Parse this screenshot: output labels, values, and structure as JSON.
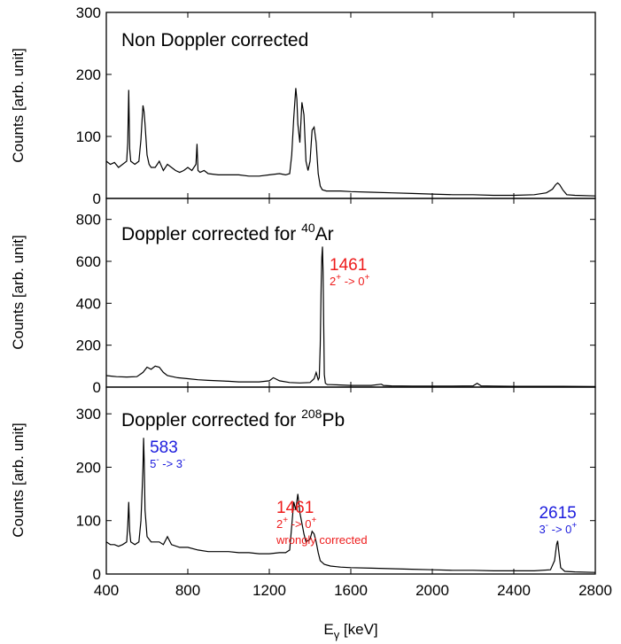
{
  "chart_data": {
    "type": "line",
    "xlabel": "E",
    "xlabel_sub": "γ",
    "xlabel_unit": " [keV]",
    "xlim": [
      400,
      2800
    ],
    "x_ticks": [
      400,
      800,
      1200,
      1600,
      2000,
      2400,
      2800
    ],
    "colors": {
      "red": "#ee1c1c",
      "blue": "#1c1cdd",
      "line": "#000000"
    },
    "panels": [
      {
        "id": "non-doppler",
        "title": "Non Doppler corrected",
        "title_sup": "",
        "title_after": "",
        "ylabel": "Counts [arb. unit]",
        "ylim": [
          0,
          300
        ],
        "y_ticks": [
          0,
          100,
          200,
          300
        ],
        "series": {
          "x": [
            400,
            420,
            440,
            460,
            480,
            500,
            505,
            510,
            515,
            520,
            540,
            560,
            570,
            575,
            580,
            585,
            590,
            600,
            610,
            620,
            640,
            660,
            680,
            700,
            720,
            740,
            760,
            780,
            800,
            820,
            840,
            845,
            850,
            860,
            880,
            900,
            950,
            1000,
            1050,
            1100,
            1150,
            1200,
            1250,
            1280,
            1300,
            1310,
            1320,
            1330,
            1335,
            1340,
            1350,
            1360,
            1370,
            1380,
            1390,
            1400,
            1410,
            1420,
            1430,
            1440,
            1450,
            1460,
            1480,
            1500,
            1550,
            1600,
            1700,
            1800,
            1900,
            2000,
            2100,
            2200,
            2300,
            2400,
            2500,
            2560,
            2590,
            2605,
            2615,
            2625,
            2640,
            2660,
            2700,
            2800
          ],
          "y": [
            60,
            55,
            58,
            50,
            55,
            60,
            90,
            175,
            80,
            60,
            55,
            60,
            95,
            125,
            150,
            140,
            120,
            70,
            55,
            50,
            50,
            60,
            45,
            55,
            50,
            45,
            42,
            45,
            50,
            45,
            55,
            88,
            45,
            42,
            45,
            40,
            38,
            38,
            38,
            36,
            36,
            38,
            40,
            38,
            40,
            70,
            130,
            178,
            160,
            120,
            90,
            155,
            135,
            60,
            45,
            60,
            110,
            115,
            90,
            40,
            20,
            14,
            12,
            12,
            12,
            11,
            10,
            9,
            8,
            7,
            6,
            6,
            5,
            5,
            6,
            9,
            15,
            22,
            25,
            22,
            14,
            6,
            5,
            4
          ]
        },
        "annotations": []
      },
      {
        "id": "ar40",
        "title": "Doppler corrected for ",
        "title_sup": "40",
        "title_after": "Ar",
        "ylabel": "Counts [arb. unit]",
        "ylim": [
          0,
          900
        ],
        "y_ticks": [
          0,
          200,
          400,
          600,
          800
        ],
        "series": {
          "x": [
            400,
            450,
            500,
            550,
            580,
            600,
            620,
            640,
            660,
            680,
            700,
            750,
            800,
            850,
            900,
            950,
            1000,
            1050,
            1100,
            1150,
            1200,
            1220,
            1250,
            1300,
            1350,
            1400,
            1420,
            1430,
            1440,
            1445,
            1450,
            1455,
            1458,
            1461,
            1464,
            1467,
            1470,
            1475,
            1485,
            1500,
            1550,
            1600,
            1700,
            1750,
            1760,
            1800,
            1900,
            2000,
            2100,
            2200,
            2220,
            2240,
            2300,
            2400,
            2600,
            2800
          ],
          "y": [
            55,
            50,
            48,
            50,
            70,
            95,
            85,
            100,
            95,
            70,
            55,
            45,
            40,
            35,
            32,
            30,
            28,
            25,
            25,
            25,
            30,
            45,
            30,
            22,
            20,
            22,
            40,
            70,
            35,
            45,
            200,
            500,
            620,
            670,
            550,
            300,
            60,
            18,
            12,
            12,
            10,
            8,
            8,
            14,
            8,
            6,
            5,
            5,
            5,
            6,
            18,
            6,
            5,
            4,
            4,
            3
          ]
        },
        "annotations": [
          {
            "id": "ar-1461",
            "x": 1461,
            "energy": "1461",
            "tr_a": "2",
            "tr_a_sup": "+",
            "tr_mid": " -> 0",
            "tr_b_sup": "+",
            "note": "",
            "color": "red"
          }
        ]
      },
      {
        "id": "pb208",
        "title": "Doppler corrected for ",
        "title_sup": "208",
        "title_after": "Pb",
        "ylabel": "Counts [arb. unit]",
        "ylim": [
          0,
          350
        ],
        "y_ticks": [
          0,
          100,
          200,
          300
        ],
        "series": {
          "x": [
            400,
            420,
            440,
            460,
            480,
            500,
            505,
            510,
            515,
            520,
            540,
            560,
            570,
            575,
            580,
            583,
            586,
            590,
            600,
            620,
            640,
            660,
            680,
            700,
            720,
            760,
            800,
            850,
            900,
            950,
            1000,
            1050,
            1100,
            1150,
            1200,
            1250,
            1280,
            1300,
            1310,
            1320,
            1330,
            1340,
            1350,
            1360,
            1370,
            1380,
            1400,
            1410,
            1420,
            1430,
            1440,
            1450,
            1470,
            1500,
            1550,
            1600,
            1700,
            1800,
            1900,
            2000,
            2100,
            2200,
            2300,
            2400,
            2500,
            2580,
            2600,
            2610,
            2615,
            2620,
            2630,
            2650,
            2700,
            2800
          ],
          "y": [
            60,
            55,
            55,
            52,
            55,
            60,
            90,
            135,
            80,
            60,
            55,
            60,
            100,
            150,
            200,
            255,
            210,
            120,
            70,
            60,
            60,
            60,
            55,
            70,
            55,
            50,
            50,
            45,
            42,
            42,
            42,
            40,
            40,
            38,
            38,
            40,
            40,
            45,
            90,
            135,
            120,
            150,
            115,
            95,
            75,
            60,
            65,
            80,
            75,
            60,
            40,
            25,
            18,
            15,
            13,
            12,
            11,
            10,
            9,
            8,
            7,
            7,
            6,
            6,
            6,
            8,
            25,
            55,
            62,
            45,
            12,
            5,
            4,
            3
          ]
        },
        "annotations": [
          {
            "id": "pb-583",
            "x": 583,
            "energy": "583",
            "tr_a": "5",
            "tr_a_sup": "-",
            "tr_mid": " -> 3",
            "tr_b_sup": "-",
            "note": "",
            "color": "blue"
          },
          {
            "id": "pb-1461",
            "x": 1461,
            "energy": "1461",
            "tr_a": "2",
            "tr_a_sup": "+",
            "tr_mid": " -> 0",
            "tr_b_sup": "+",
            "note": "wrongly corrected",
            "color": "red"
          },
          {
            "id": "pb-2615",
            "x": 2615,
            "energy": "2615",
            "tr_a": "3",
            "tr_a_sup": "-",
            "tr_mid": " -> 0",
            "tr_b_sup": "+",
            "note": "",
            "color": "blue"
          }
        ]
      }
    ]
  }
}
